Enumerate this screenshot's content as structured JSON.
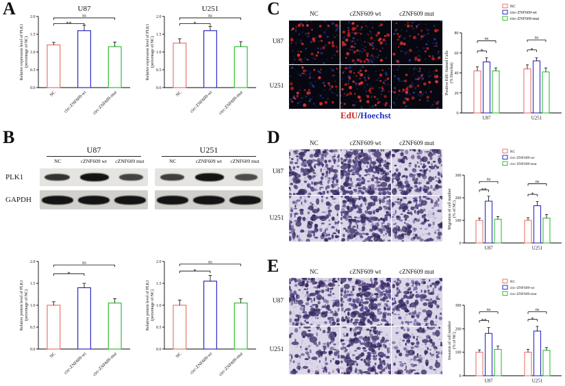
{
  "figure": {
    "bg": "#ffffff"
  },
  "colors": {
    "nc": "#e8736b",
    "wt": "#2929c8",
    "mut": "#2fbf2f",
    "edu_red": "#cc2222",
    "hoechst_blue": "#2233cc"
  },
  "panels": {
    "a": {
      "label": "A"
    },
    "b": {
      "label": "B",
      "group_titles": [
        "U87",
        "U251"
      ],
      "lanes": [
        "NC",
        "cZNF609 wt",
        "cZNF609 mut"
      ],
      "rows": [
        {
          "name": "PLK1",
          "bands": [
            [
              0.72,
              1.0,
              0.58
            ],
            [
              0.62,
              1.0,
              0.5
            ]
          ]
        },
        {
          "name": "GAPDH",
          "bands": [
            [
              1,
              1,
              1
            ],
            [
              1,
              1,
              1
            ]
          ]
        }
      ]
    },
    "c": {
      "label": "C",
      "col_headers": [
        "NC",
        "cZNF609 wt",
        "cZNF609 mut"
      ],
      "row_labels": [
        "U87",
        "U251"
      ],
      "caption": {
        "edu": "EdU",
        "sep": "/",
        "hoechst": "Hoechst"
      }
    },
    "d": {
      "label": "D",
      "col_headers": [
        "NC",
        "cZNF609 wt",
        "cZNF609 mut"
      ],
      "row_labels": [
        "U87",
        "U251"
      ]
    },
    "e": {
      "label": "E",
      "col_headers": [
        "NC",
        "cZNF609 wt",
        "cZNF609 mut"
      ],
      "row_labels": [
        "U87",
        "U251"
      ]
    }
  },
  "chart_data": [
    {
      "id": "A-U87",
      "type": "bar",
      "title": "U87",
      "ylabel": [
        "Relative expression level of PLK1",
        "(percentage of NC)"
      ],
      "categories": [
        "NC",
        "circ-ZNF609-wt",
        "circ-ZNF609-mut"
      ],
      "values": [
        1.2,
        1.6,
        1.15
      ],
      "errors": [
        0.07,
        0.15,
        0.13
      ],
      "ylim": [
        0,
        2.0
      ],
      "yticks": [
        0,
        0.5,
        1.0,
        1.5,
        2.0
      ],
      "yticklabels": [
        "0.0",
        "0.5",
        "1.0",
        "1.5",
        "2.0"
      ],
      "sig": [
        {
          "from": 0,
          "to": 1,
          "label": "**",
          "at": 1.8
        },
        {
          "from": 0,
          "to": 2,
          "label": "ns",
          "at": 1.96
        }
      ]
    },
    {
      "id": "A-U251",
      "type": "bar",
      "title": "U251",
      "ylabel": [
        "Relative expression level of PLK1",
        "(percentage of NC)"
      ],
      "categories": [
        "NC",
        "circ-ZNF609-wt",
        "circ-ZNF609-mut"
      ],
      "values": [
        1.25,
        1.6,
        1.15
      ],
      "errors": [
        0.12,
        0.12,
        0.14
      ],
      "ylim": [
        0,
        2.0
      ],
      "yticks": [
        0,
        0.5,
        1.0,
        1.5,
        2.0
      ],
      "yticklabels": [
        "0.0",
        "0.5",
        "1.0",
        "1.5",
        "2.0"
      ],
      "sig": [
        {
          "from": 0,
          "to": 1,
          "label": "*",
          "at": 1.8
        },
        {
          "from": 0,
          "to": 2,
          "label": "ns",
          "at": 1.96
        }
      ]
    },
    {
      "id": "B-U87",
      "type": "bar",
      "title": "",
      "ylabel": [
        "Relative protein level of PLK1",
        "(percentage of NC)"
      ],
      "categories": [
        "NC",
        "circ-ZNF609-wt",
        "circ-ZNF609-mut"
      ],
      "values": [
        1.0,
        1.4,
        1.05
      ],
      "errors": [
        0.08,
        0.1,
        0.1
      ],
      "ylim": [
        0,
        2.0
      ],
      "yticks": [
        0,
        0.5,
        1.0,
        1.5,
        2.0
      ],
      "yticklabels": [
        "0.0",
        "0.5",
        "1.0",
        "1.5",
        "2.0"
      ],
      "sig": [
        {
          "from": 0,
          "to": 1,
          "label": "*",
          "at": 1.72
        },
        {
          "from": 0,
          "to": 2,
          "label": "ns",
          "at": 1.92
        }
      ]
    },
    {
      "id": "B-U251",
      "type": "bar",
      "title": "",
      "ylabel": [
        "Relative protein level of PLK1",
        "(percentage of NC)"
      ],
      "categories": [
        "NC",
        "circ-ZNF609-wt",
        "circ-ZNF609-mut"
      ],
      "values": [
        1.0,
        1.55,
        1.05
      ],
      "errors": [
        0.12,
        0.13,
        0.1
      ],
      "ylim": [
        0,
        2.0
      ],
      "yticks": [
        0,
        0.5,
        1.0,
        1.5,
        2.0
      ],
      "yticklabels": [
        "0.0",
        "0.5",
        "1.0",
        "1.5",
        "2.0"
      ],
      "sig": [
        {
          "from": 0,
          "to": 1,
          "label": "*",
          "at": 1.78
        },
        {
          "from": 0,
          "to": 2,
          "label": "ns",
          "at": 1.94
        }
      ]
    },
    {
      "id": "C",
      "type": "grouped-bar",
      "ylabel": [
        "Positive EdU Stained Cells",
        "(% Hoechst)"
      ],
      "categories": [
        "U87",
        "U251"
      ],
      "series": [
        {
          "name": "NC",
          "values": [
            42,
            44
          ],
          "errors": [
            4,
            4
          ]
        },
        {
          "name": "circ-ZNF609-wt",
          "values": [
            51,
            52
          ],
          "errors": [
            4,
            3
          ]
        },
        {
          "name": "circ-ZNF609-mut",
          "values": [
            42,
            41
          ],
          "errors": [
            3,
            4
          ]
        }
      ],
      "ylim": [
        0,
        80
      ],
      "yticks": [
        0,
        20,
        40,
        60,
        80
      ],
      "yticklabels": [
        "0",
        "20",
        "40",
        "60",
        "80"
      ],
      "legend": [
        "NC",
        "circ-ZNF609-wt",
        "circ-ZNF609-mut"
      ],
      "sig": [
        {
          "group": 0,
          "from": 0,
          "to": 1,
          "label": "*",
          "at": 62
        },
        {
          "group": 0,
          "from": 0,
          "to": 2,
          "label": "ns",
          "at": 72
        },
        {
          "group": 1,
          "from": 0,
          "to": 1,
          "label": "*",
          "at": 63
        },
        {
          "group": 1,
          "from": 0,
          "to": 2,
          "label": "ns",
          "at": 73
        }
      ]
    },
    {
      "id": "D",
      "type": "grouped-bar",
      "ylabel": [
        "Migration of cell number",
        "(% of NC)"
      ],
      "categories": [
        "U87",
        "U251"
      ],
      "series": [
        {
          "name": "NC",
          "values": [
            100,
            100
          ],
          "errors": [
            10,
            12
          ]
        },
        {
          "name": "circ-ZNF609-wt",
          "values": [
            185,
            165
          ],
          "errors": [
            22,
            18
          ]
        },
        {
          "name": "circ-ZNF609-mut",
          "values": [
            105,
            110
          ],
          "errors": [
            12,
            16
          ]
        }
      ],
      "ylim": [
        0,
        300
      ],
      "yticks": [
        0,
        100,
        200,
        300
      ],
      "yticklabels": [
        "0",
        "100",
        "200",
        "300"
      ],
      "legend": [
        "NC",
        "circ-ZNF609-wt",
        "circ-ZNF609-mut"
      ],
      "sig": [
        {
          "group": 0,
          "from": 0,
          "to": 1,
          "label": "**",
          "at": 235
        },
        {
          "group": 0,
          "from": 0,
          "to": 2,
          "label": "ns",
          "at": 272
        },
        {
          "group": 1,
          "from": 0,
          "to": 1,
          "label": "*",
          "at": 215
        },
        {
          "group": 1,
          "from": 0,
          "to": 2,
          "label": "ns",
          "at": 262
        }
      ]
    },
    {
      "id": "E",
      "type": "grouped-bar",
      "ylabel": [
        "Invasion of cell number",
        "(% of NC)"
      ],
      "categories": [
        "U87",
        "U251"
      ],
      "series": [
        {
          "name": "NC",
          "values": [
            100,
            100
          ],
          "errors": [
            10,
            12
          ]
        },
        {
          "name": "circ-ZNF609-wt",
          "values": [
            180,
            190
          ],
          "errors": [
            25,
            20
          ]
        },
        {
          "name": "circ-ZNF609-mut",
          "values": [
            112,
            108
          ],
          "errors": [
            14,
            12
          ]
        }
      ],
      "ylim": [
        0,
        300
      ],
      "yticks": [
        0,
        100,
        200,
        300
      ],
      "yticklabels": [
        "0",
        "100",
        "200",
        "300"
      ],
      "legend": [
        "NC",
        "circ-ZNF609-wt",
        "circ-ZNF609-mut"
      ],
      "sig": [
        {
          "group": 0,
          "from": 0,
          "to": 1,
          "label": "**",
          "at": 235
        },
        {
          "group": 0,
          "from": 0,
          "to": 2,
          "label": "ns",
          "at": 272
        },
        {
          "group": 1,
          "from": 0,
          "to": 1,
          "label": "*",
          "at": 240
        },
        {
          "group": 1,
          "from": 0,
          "to": 2,
          "label": "ns",
          "at": 272
        }
      ]
    }
  ]
}
